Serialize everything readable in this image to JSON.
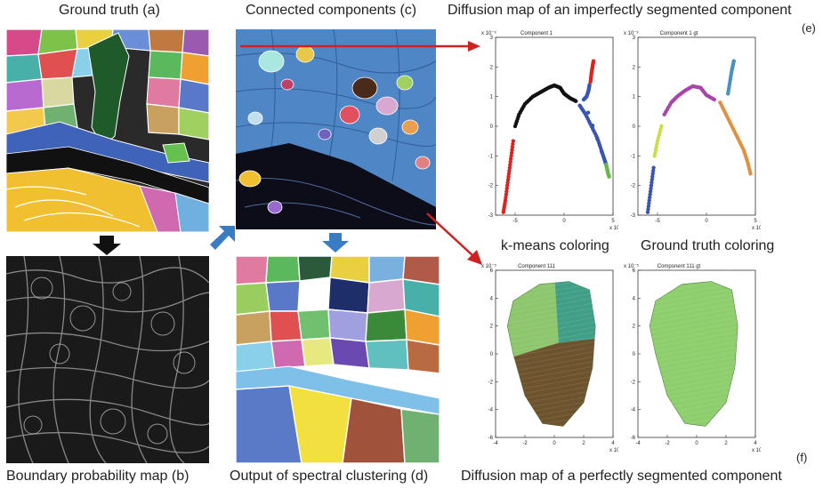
{
  "captions": {
    "a": "Ground truth (a)",
    "b": "Boundary probability map (b)",
    "c": "Connected components (c)",
    "d": "Output of spectral clustering (d)",
    "e_title": "Diffusion map of an imperfectly segmented component",
    "e_tag": "(e)",
    "kmeans": "k-means coloring",
    "gt": "Ground truth coloring",
    "f_title": "Diffusion map of a perfectly segmented component",
    "f_tag": "(f)"
  },
  "colors": {
    "arrow_down_black": "#111111",
    "arrow_blue": "#3a7cc4",
    "arrow_red": "#cc2222",
    "components_bg": "#4f86c6"
  },
  "chart_data": [
    {
      "type": "scatter",
      "title": "Component 1",
      "xlim": [
        -7,
        5
      ],
      "ylim": [
        -3,
        3
      ],
      "x_ticks": [
        "-5",
        "0",
        "5"
      ],
      "y_ticks": [
        "3",
        "2",
        "1",
        "0",
        "-1",
        "-2",
        "-3"
      ],
      "x_exp": "x 10⁻⁴",
      "y_exp": "x 10⁻³",
      "series": [
        {
          "color": "#dd2222",
          "x": [
            -6.2,
            -6.0,
            -5.8,
            -5.6,
            -5.4,
            -5.2
          ],
          "y": [
            -2.9,
            -2.5,
            -2.0,
            -1.5,
            -1.0,
            -0.5
          ]
        },
        {
          "color": "#111111",
          "x": [
            -5.0,
            -4.6,
            -4.0,
            -3.2,
            -2.4,
            -1.6,
            -1.0,
            -0.4,
            0.0,
            0.6,
            1.2
          ],
          "y": [
            0.0,
            0.4,
            0.75,
            1.0,
            1.15,
            1.3,
            1.38,
            1.3,
            1.1,
            0.95,
            0.85
          ]
        },
        {
          "color": "#3a55b0",
          "x": [
            1.6,
            2.2,
            2.8,
            3.4,
            3.8,
            4.1,
            4.3,
            2.0,
            2.3,
            2.5,
            2.6
          ],
          "y": [
            0.7,
            0.4,
            0.0,
            -0.4,
            -0.8,
            -1.1,
            -1.3,
            0.9,
            1.0,
            1.2,
            1.4
          ]
        },
        {
          "color": "#dd2222",
          "x": [
            2.7,
            2.8,
            2.9,
            3.0
          ],
          "y": [
            1.5,
            1.8,
            2.0,
            2.2
          ]
        },
        {
          "color": "#66bb44",
          "x": [
            4.3,
            4.4,
            4.5,
            4.6
          ],
          "y": [
            -1.3,
            -1.45,
            -1.6,
            -1.7
          ]
        }
      ]
    },
    {
      "type": "scatter",
      "title": "Component 1 gt",
      "xlim": [
        -7,
        5
      ],
      "ylim": [
        -3,
        3
      ],
      "x_ticks": [
        "-5",
        "0",
        "5"
      ],
      "y_ticks": [
        "3",
        "2",
        "1",
        "0",
        "-1",
        "-2",
        "-3"
      ],
      "x_exp": "x 10⁻⁴",
      "y_exp": "x 10⁻³",
      "series": [
        {
          "color": "#3a55b0",
          "x": [
            -6.0,
            -5.8,
            -5.6,
            -5.4
          ],
          "y": [
            -2.9,
            -2.4,
            -1.9,
            -1.4
          ]
        },
        {
          "color": "#c9de44",
          "x": [
            -5.3,
            -5.0,
            -4.6
          ],
          "y": [
            -1.0,
            -0.5,
            0.0
          ]
        },
        {
          "color": "#aa44aa",
          "x": [
            -4.3,
            -3.6,
            -3.0,
            -2.2,
            -1.4,
            -0.6,
            0.0,
            0.8
          ],
          "y": [
            0.4,
            0.8,
            1.0,
            1.2,
            1.35,
            1.3,
            1.05,
            0.9
          ]
        },
        {
          "color": "#e09040",
          "x": [
            1.4,
            2.0,
            2.6,
            3.2,
            3.8,
            4.2,
            4.5
          ],
          "y": [
            0.8,
            0.4,
            0.0,
            -0.4,
            -0.8,
            -1.2,
            -1.6
          ]
        },
        {
          "color": "#4a90c0",
          "x": [
            2.2,
            2.4,
            2.6,
            2.8
          ],
          "y": [
            1.1,
            1.5,
            1.9,
            2.2
          ]
        }
      ]
    },
    {
      "type": "scatter",
      "title": "Component 111",
      "xlim": [
        -4,
        4
      ],
      "ylim": [
        -6,
        6
      ],
      "x_ticks": [
        "-4",
        "-2",
        "0",
        "2",
        "4"
      ],
      "y_ticks": [
        "6",
        "4",
        "2",
        "0",
        "-2",
        "-4",
        "-6"
      ],
      "x_exp": "x 10⁻⁵",
      "y_exp": "x 10⁻⁵",
      "series": [
        {
          "color": "#88c466",
          "name": "",
          "x": [],
          "y": []
        }
      ]
    },
    {
      "type": "scatter",
      "title": "Component 111 gt",
      "xlim": [
        -4,
        4
      ],
      "ylim": [
        -6,
        6
      ],
      "x_ticks": [
        "-4",
        "-2",
        "0",
        "2",
        "4"
      ],
      "y_ticks": [
        "6",
        "4",
        "2",
        "0",
        "-2",
        "-4",
        "-6"
      ],
      "x_exp": "x 10⁻⁵",
      "y_exp": "x 10⁻⁵",
      "series": [
        {
          "color": "#88cc66",
          "x": [],
          "y": []
        }
      ]
    }
  ]
}
